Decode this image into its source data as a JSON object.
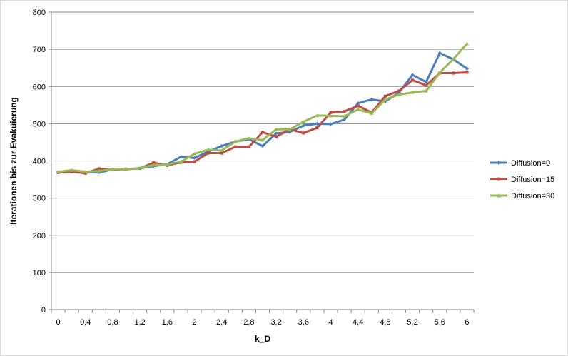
{
  "chart_data": {
    "type": "line",
    "title": "",
    "xlabel": "k_D",
    "ylabel": "Iterationen bis zur Evakuierung",
    "ylim": [
      0,
      800
    ],
    "y_ticks": [
      "0",
      "100",
      "200",
      "300",
      "400",
      "500",
      "600",
      "700",
      "800"
    ],
    "x_tick_labels": [
      "0",
      "0,4",
      "0,8",
      "1,2",
      "1,6",
      "2",
      "2,4",
      "2,8",
      "3,2",
      "3,6",
      "4",
      "4,4",
      "4,8",
      "5,2",
      "5,6",
      "6"
    ],
    "x": [
      0,
      0.2,
      0.4,
      0.6,
      0.8,
      1.0,
      1.2,
      1.4,
      1.6,
      1.8,
      2.0,
      2.2,
      2.4,
      2.6,
      2.8,
      3.0,
      3.2,
      3.4,
      3.6,
      3.8,
      4.0,
      4.2,
      4.4,
      4.6,
      4.8,
      5.0,
      5.2,
      5.4,
      5.6,
      5.8,
      6.0
    ],
    "grid": "horizontal",
    "legend_position": "right",
    "series": [
      {
        "name": "Diffusion=0",
        "color": "#4a7ebb",
        "marker": "diamond",
        "values": [
          370,
          371,
          370,
          369,
          377,
          378,
          380,
          386,
          391,
          411,
          408,
          425,
          440,
          452,
          458,
          440,
          474,
          478,
          495,
          500,
          499,
          511,
          555,
          565,
          560,
          583,
          631,
          612,
          690,
          673,
          648
        ]
      },
      {
        "name": "Diffusion=15",
        "color": "#be4b48",
        "marker": "square",
        "values": [
          369,
          371,
          367,
          379,
          376,
          378,
          380,
          395,
          388,
          396,
          398,
          421,
          421,
          438,
          438,
          477,
          465,
          485,
          475,
          489,
          530,
          533,
          548,
          530,
          574,
          588,
          617,
          603,
          636,
          636,
          638
        ]
      },
      {
        "name": "Diffusion=30",
        "color": "#98b954",
        "marker": "triangle",
        "values": [
          371,
          375,
          371,
          373,
          378,
          377,
          381,
          389,
          390,
          398,
          419,
          430,
          428,
          452,
          461,
          456,
          485,
          485,
          505,
          522,
          521,
          520,
          538,
          528,
          565,
          578,
          584,
          588,
          637,
          674,
          715
        ]
      }
    ]
  }
}
